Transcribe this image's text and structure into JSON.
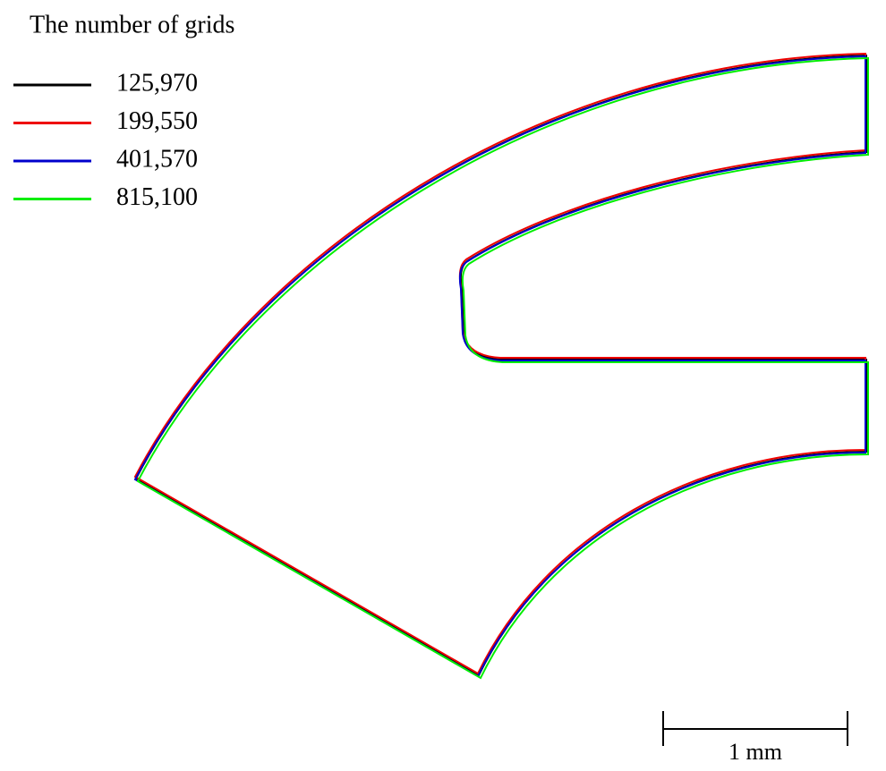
{
  "legend": {
    "title": "The number of grids",
    "entries": [
      {
        "label": "125,970",
        "color": "#000000"
      },
      {
        "label": "199,550",
        "color": "#ee0000"
      },
      {
        "label": "401,570",
        "color": "#0000cc"
      },
      {
        "label": "815,100",
        "color": "#00ee00"
      }
    ]
  },
  "scale_bar": {
    "label": "1 mm"
  }
}
